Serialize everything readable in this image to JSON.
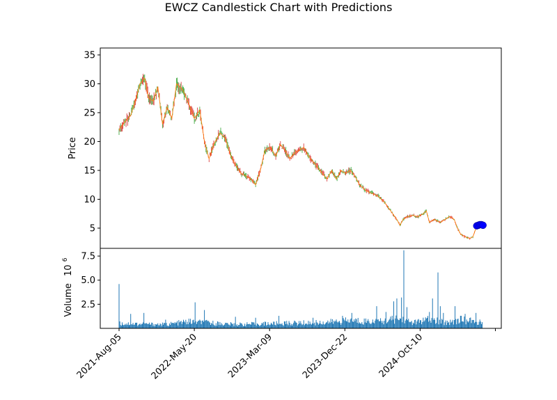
{
  "chart_data": {
    "type": "candlestick",
    "title": "EWCZ Candlestick Chart with Predictions",
    "price_panel": {
      "ylabel": "Price",
      "ylim": [
        1.5,
        36.2
      ],
      "yticks": [
        5,
        10,
        15,
        20,
        25,
        30,
        35
      ],
      "colors": {
        "up": "#2ca02c",
        "down": "#d62728",
        "line": "#ff7f0e",
        "prediction": "#0000ff"
      },
      "trend": [
        [
          0,
          22.0
        ],
        [
          8,
          23.5
        ],
        [
          15,
          24.5
        ],
        [
          22,
          27.5
        ],
        [
          27,
          30.0
        ],
        [
          33,
          31.0
        ],
        [
          38,
          27.5
        ],
        [
          44,
          27.0
        ],
        [
          50,
          29.5
        ],
        [
          56,
          23.0
        ],
        [
          62,
          26.0
        ],
        [
          68,
          24.0
        ],
        [
          74,
          30.0
        ],
        [
          82,
          29.0
        ],
        [
          90,
          26.5
        ],
        [
          97,
          24.0
        ],
        [
          104,
          25.5
        ],
        [
          110,
          20.0
        ],
        [
          116,
          17.0
        ],
        [
          122,
          19.5
        ],
        [
          130,
          21.5
        ],
        [
          137,
          20.5
        ],
        [
          144,
          17.5
        ],
        [
          150,
          16.0
        ],
        [
          157,
          14.5
        ],
        [
          164,
          14.0
        ],
        [
          170,
          13.5
        ],
        [
          176,
          12.5
        ],
        [
          182,
          15.0
        ],
        [
          188,
          18.5
        ],
        [
          195,
          19.0
        ],
        [
          202,
          17.5
        ],
        [
          208,
          19.5
        ],
        [
          214,
          18.5
        ],
        [
          220,
          17.0
        ],
        [
          226,
          18.0
        ],
        [
          232,
          18.5
        ],
        [
          238,
          19.0
        ],
        [
          244,
          17.5
        ],
        [
          250,
          16.5
        ],
        [
          256,
          15.5
        ],
        [
          262,
          14.5
        ],
        [
          268,
          13.5
        ],
        [
          274,
          15.0
        ],
        [
          280,
          13.5
        ],
        [
          286,
          15.0
        ],
        [
          292,
          14.5
        ],
        [
          298,
          15.0
        ],
        [
          304,
          14.0
        ],
        [
          310,
          12.5
        ],
        [
          318,
          11.5
        ],
        [
          326,
          11.0
        ],
        [
          334,
          10.5
        ],
        [
          342,
          9.5
        ],
        [
          350,
          8.0
        ],
        [
          358,
          6.5
        ],
        [
          362,
          5.5
        ],
        [
          366,
          6.5
        ],
        [
          372,
          7.0
        ],
        [
          378,
          7.2
        ],
        [
          386,
          7.0
        ],
        [
          392,
          7.5
        ],
        [
          396,
          8.0
        ],
        [
          400,
          6.0
        ],
        [
          406,
          6.5
        ],
        [
          414,
          6.0
        ],
        [
          420,
          6.5
        ],
        [
          426,
          7.0
        ],
        [
          432,
          6.5
        ],
        [
          436,
          5.0
        ],
        [
          440,
          4.0
        ],
        [
          446,
          3.5
        ],
        [
          452,
          3.2
        ],
        [
          456,
          3.5
        ],
        [
          460,
          5.0
        ],
        [
          464,
          5.5
        ],
        [
          468,
          5.8
        ]
      ],
      "predictions": [
        [
          461,
          5.4
        ],
        [
          463,
          5.5
        ],
        [
          465,
          5.6
        ],
        [
          467,
          5.6
        ],
        [
          469,
          5.5
        ]
      ]
    },
    "volume_panel": {
      "ylabel": "Volume",
      "scale_label": "10",
      "scale_exponent": "6",
      "ylim": [
        0,
        8.3
      ],
      "yticks": [
        "2.5",
        "5.0",
        "7.5"
      ],
      "ytick_values": [
        2.5,
        5.0,
        7.5
      ],
      "color": "#1f77b4",
      "baseline": [
        [
          0,
          0.5
        ],
        [
          60,
          0.4
        ],
        [
          90,
          0.7
        ],
        [
          110,
          0.6
        ],
        [
          150,
          0.4
        ],
        [
          200,
          0.5
        ],
        [
          260,
          0.6
        ],
        [
          300,
          0.8
        ],
        [
          340,
          0.7
        ],
        [
          360,
          1.0
        ],
        [
          380,
          0.6
        ],
        [
          400,
          0.9
        ],
        [
          420,
          0.6
        ],
        [
          440,
          0.9
        ],
        [
          468,
          0.6
        ]
      ],
      "spikes": [
        [
          0,
          4.6
        ],
        [
          15,
          1.5
        ],
        [
          32,
          1.6
        ],
        [
          60,
          0.9
        ],
        [
          98,
          2.7
        ],
        [
          110,
          1.9
        ],
        [
          150,
          1.2
        ],
        [
          176,
          1.1
        ],
        [
          206,
          1.3
        ],
        [
          250,
          1.1
        ],
        [
          288,
          1.3
        ],
        [
          300,
          1.6
        ],
        [
          332,
          2.3
        ],
        [
          344,
          1.7
        ],
        [
          354,
          2.8
        ],
        [
          358,
          3.1
        ],
        [
          364,
          3.2
        ],
        [
          367,
          8.1
        ],
        [
          371,
          2.2
        ],
        [
          400,
          1.7
        ],
        [
          404,
          3.1
        ],
        [
          411,
          5.8
        ],
        [
          414,
          2.3
        ],
        [
          418,
          1.6
        ],
        [
          433,
          2.3
        ],
        [
          446,
          1.5
        ],
        [
          460,
          1.6
        ]
      ]
    },
    "x_axis": {
      "n_bars": 470,
      "ticks": [
        "2021-Aug-05",
        "2022-May-20",
        "2023-Mar-09",
        "2023-Dec-22",
        "2024-Oct-10"
      ],
      "tick_index": [
        0,
        97,
        194,
        291,
        388,
        485
      ]
    }
  }
}
